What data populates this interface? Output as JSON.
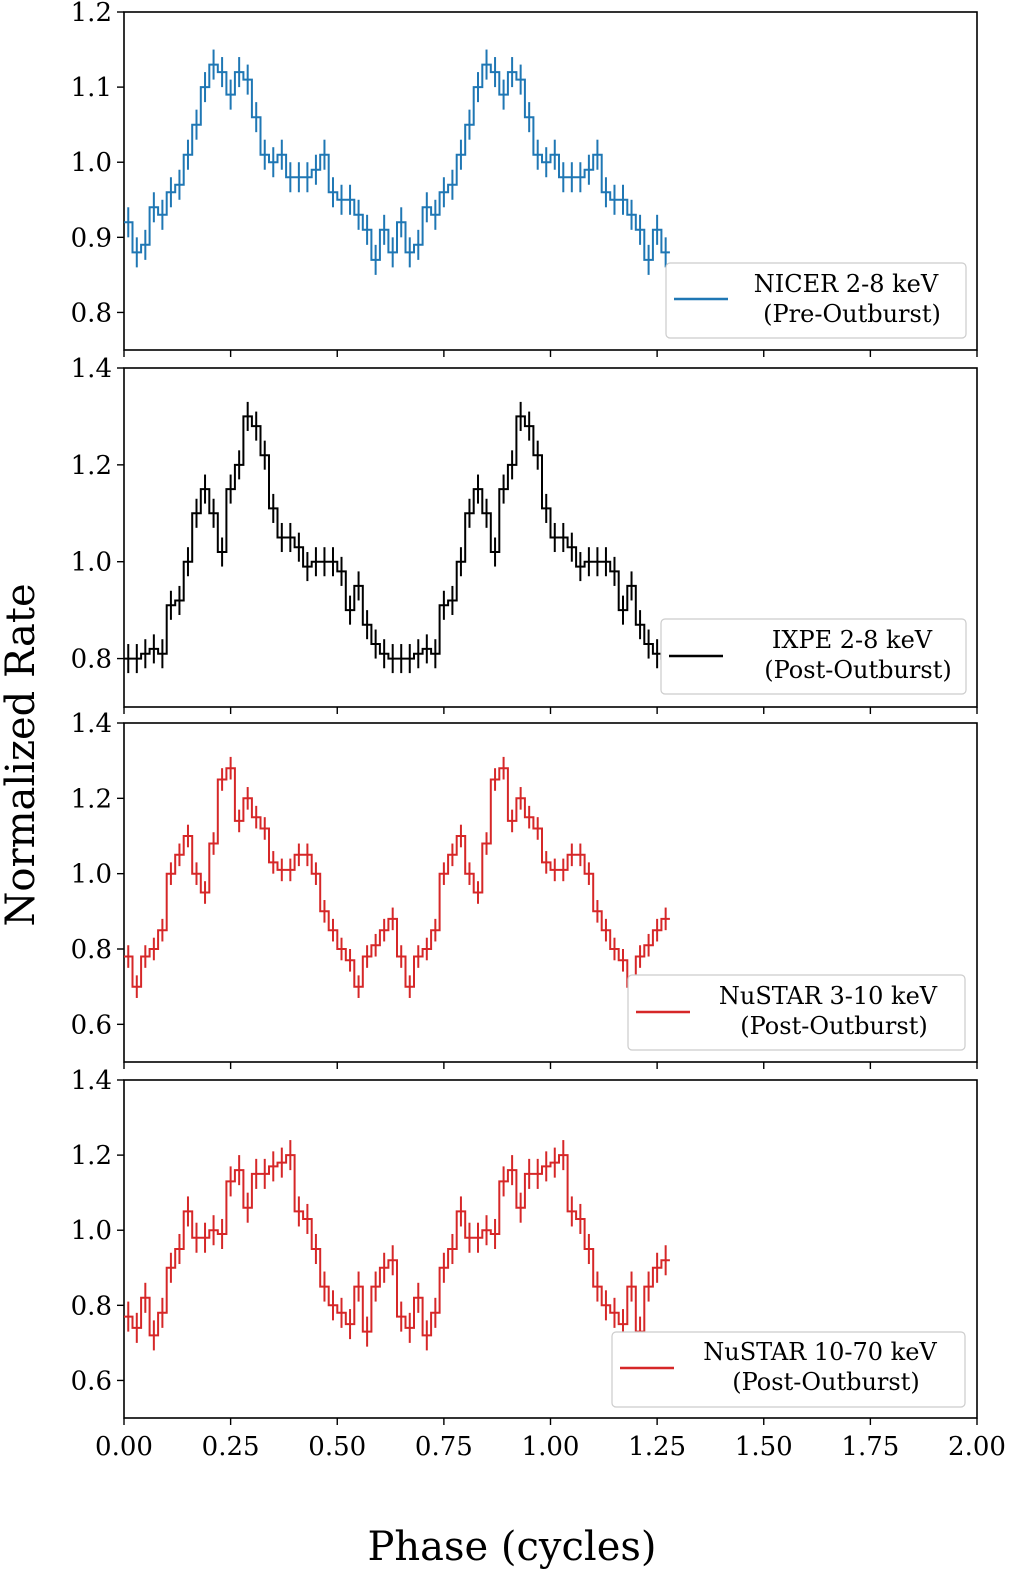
{
  "chart_data": {
    "type": "line",
    "ylabel": "Normalized Rate",
    "xlabel": "Phase (cycles)",
    "xlim": [
      0.0,
      2.0
    ],
    "xticks": [
      "0.00",
      "0.25",
      "0.50",
      "0.75",
      "1.00",
      "1.25",
      "1.50",
      "1.75",
      "2.00"
    ],
    "bin_width": 0.02,
    "panels": [
      {
        "name": "NICER 2-8 keV",
        "subtitle": "(Pre-Outburst)",
        "color": "#1f77b4",
        "ylim": [
          0.75,
          1.2
        ],
        "yticks": [
          "0.8",
          "0.9",
          "1.0",
          "1.1",
          "1.2"
        ],
        "values": [
          0.92,
          0.88,
          0.89,
          0.94,
          0.93,
          0.96,
          0.97,
          1.01,
          1.05,
          1.1,
          1.13,
          1.12,
          1.09,
          1.12,
          1.11,
          1.06,
          1.01,
          1.0,
          1.01,
          0.98,
          0.98,
          0.98,
          0.99,
          1.01,
          0.96,
          0.95,
          0.95,
          0.93,
          0.91,
          0.87,
          0.91,
          0.88
        ],
        "errors": [
          0.02,
          0.02,
          0.02,
          0.02,
          0.02,
          0.02,
          0.02,
          0.02,
          0.02,
          0.02,
          0.02,
          0.02,
          0.02,
          0.02,
          0.02,
          0.02,
          0.02,
          0.02,
          0.02,
          0.02,
          0.02,
          0.02,
          0.02,
          0.02,
          0.02,
          0.02,
          0.02,
          0.02,
          0.02,
          0.02,
          0.02,
          0.02
        ]
      },
      {
        "name": "IXPE 2-8 keV",
        "subtitle": "(Post-Outburst)",
        "color": "#000000",
        "ylim": [
          0.7,
          1.4
        ],
        "yticks": [
          "0.8",
          "1.0",
          "1.2",
          "1.4"
        ],
        "values": [
          0.8,
          0.8,
          0.81,
          0.82,
          0.81,
          0.91,
          0.92,
          1.0,
          1.1,
          1.15,
          1.1,
          1.02,
          1.15,
          1.2,
          1.3,
          1.28,
          1.22,
          1.11,
          1.05,
          1.05,
          1.03,
          0.99,
          1.0,
          1.0,
          1.0,
          0.98,
          0.9,
          0.95,
          0.87,
          0.83,
          0.81,
          0.8
        ],
        "errors": [
          0.03,
          0.03,
          0.03,
          0.03,
          0.03,
          0.03,
          0.03,
          0.03,
          0.03,
          0.03,
          0.03,
          0.03,
          0.03,
          0.03,
          0.03,
          0.03,
          0.03,
          0.03,
          0.03,
          0.03,
          0.03,
          0.03,
          0.03,
          0.03,
          0.03,
          0.03,
          0.03,
          0.03,
          0.03,
          0.03,
          0.03,
          0.03
        ]
      },
      {
        "name": "NuSTAR 3-10 keV",
        "subtitle": "(Post-Outburst)",
        "color": "#d62728",
        "ylim": [
          0.5,
          1.4
        ],
        "yticks": [
          "0.6",
          "0.8",
          "1.0",
          "1.2",
          "1.4"
        ],
        "values": [
          0.78,
          0.7,
          0.78,
          0.8,
          0.85,
          1.0,
          1.05,
          1.1,
          1.0,
          0.95,
          1.08,
          1.25,
          1.28,
          1.14,
          1.2,
          1.15,
          1.12,
          1.03,
          1.01,
          1.01,
          1.05,
          1.05,
          1.0,
          0.9,
          0.85,
          0.8,
          0.77,
          0.7,
          0.78,
          0.81,
          0.85,
          0.88
        ],
        "errors": [
          0.03,
          0.03,
          0.03,
          0.03,
          0.03,
          0.03,
          0.03,
          0.03,
          0.03,
          0.03,
          0.03,
          0.03,
          0.03,
          0.03,
          0.03,
          0.03,
          0.03,
          0.03,
          0.03,
          0.03,
          0.03,
          0.03,
          0.03,
          0.03,
          0.03,
          0.03,
          0.03,
          0.03,
          0.03,
          0.03,
          0.03,
          0.03
        ]
      },
      {
        "name": "NuSTAR 10-70 keV",
        "subtitle": "(Post-Outburst)",
        "color": "#d62728",
        "ylim": [
          0.5,
          1.4
        ],
        "yticks": [
          "0.6",
          "0.8",
          "1.0",
          "1.2",
          "1.4"
        ],
        "values": [
          0.77,
          0.74,
          0.82,
          0.72,
          0.78,
          0.9,
          0.95,
          1.05,
          0.98,
          0.98,
          1.0,
          0.99,
          1.13,
          1.16,
          1.06,
          1.15,
          1.15,
          1.17,
          1.18,
          1.2,
          1.05,
          1.03,
          0.95,
          0.85,
          0.8,
          0.78,
          0.75,
          0.85,
          0.73,
          0.85,
          0.9,
          0.92
        ],
        "errors": [
          0.04,
          0.04,
          0.04,
          0.04,
          0.04,
          0.04,
          0.04,
          0.04,
          0.04,
          0.04,
          0.04,
          0.04,
          0.04,
          0.04,
          0.04,
          0.04,
          0.04,
          0.04,
          0.04,
          0.04,
          0.04,
          0.04,
          0.04,
          0.04,
          0.04,
          0.04,
          0.04,
          0.04,
          0.04,
          0.04,
          0.04,
          0.04
        ]
      }
    ]
  }
}
